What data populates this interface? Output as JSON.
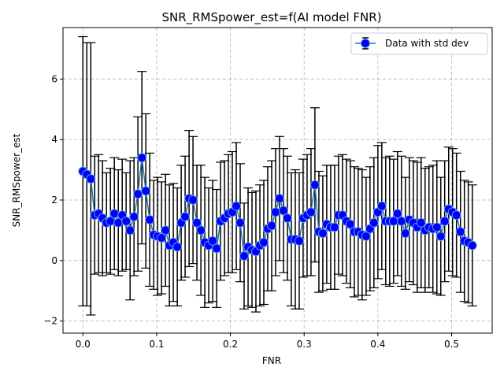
{
  "chart_data": {
    "type": "line",
    "title": "SNR_RMSpower_est=f(AI model FNR)",
    "xlabel": "FNR",
    "ylabel": "SNR_RMSpower_est",
    "xlim": [
      -0.027,
      0.555
    ],
    "ylim": [
      -2.4,
      7.7
    ],
    "xticks": [
      0.0,
      0.1,
      0.2,
      0.3,
      0.4,
      0.5
    ],
    "xtick_labels": [
      "0.0",
      "0.1",
      "0.2",
      "0.3",
      "0.4",
      "0.5"
    ],
    "yticks": [
      -2,
      0,
      2,
      4,
      6
    ],
    "ytick_labels": [
      "−2",
      "0",
      "2",
      "4",
      "6"
    ],
    "grid": true,
    "legend_position": "top-right",
    "colors": {
      "line": "#1f77b4",
      "marker_fill": "#0000ff",
      "errorbar": "#000000",
      "grid": "#b0b0b0"
    },
    "series": [
      {
        "name": "Data with std dev",
        "x": [
          0.0,
          0.0053,
          0.0107,
          0.016,
          0.0213,
          0.0266,
          0.032,
          0.0373,
          0.0426,
          0.048,
          0.0533,
          0.0586,
          0.064,
          0.0693,
          0.0746,
          0.08,
          0.0853,
          0.0906,
          0.096,
          0.1013,
          0.1066,
          0.112,
          0.1173,
          0.1226,
          0.128,
          0.1333,
          0.1386,
          0.144,
          0.1493,
          0.1546,
          0.16,
          0.1653,
          0.1706,
          0.176,
          0.1813,
          0.1866,
          0.192,
          0.1973,
          0.2026,
          0.208,
          0.2133,
          0.2186,
          0.224,
          0.2293,
          0.2346,
          0.24,
          0.2453,
          0.2506,
          0.256,
          0.2613,
          0.2666,
          0.272,
          0.2773,
          0.2826,
          0.288,
          0.2933,
          0.2986,
          0.304,
          0.3093,
          0.3146,
          0.32,
          0.3253,
          0.3306,
          0.336,
          0.3413,
          0.3466,
          0.352,
          0.3573,
          0.3626,
          0.368,
          0.3733,
          0.3786,
          0.384,
          0.3893,
          0.3946,
          0.4,
          0.4053,
          0.4106,
          0.416,
          0.4213,
          0.4266,
          0.432,
          0.4373,
          0.4426,
          0.448,
          0.4533,
          0.4586,
          0.464,
          0.4693,
          0.4746,
          0.48,
          0.4853,
          0.4906,
          0.496,
          0.5013,
          0.5066,
          0.512,
          0.5173,
          0.5226,
          0.528
        ],
        "y": [
          2.95,
          2.85,
          2.7,
          1.5,
          1.55,
          1.4,
          1.25,
          1.3,
          1.55,
          1.25,
          1.5,
          1.3,
          1.0,
          1.45,
          2.2,
          3.4,
          2.3,
          1.35,
          0.85,
          0.8,
          0.75,
          1.0,
          0.5,
          0.6,
          0.45,
          1.25,
          1.45,
          2.05,
          2.0,
          1.25,
          1.0,
          0.6,
          0.5,
          0.65,
          0.4,
          1.3,
          1.4,
          1.55,
          1.6,
          1.8,
          1.25,
          0.15,
          0.45,
          0.35,
          0.3,
          0.5,
          0.6,
          1.05,
          1.15,
          1.6,
          2.05,
          1.65,
          1.4,
          0.7,
          0.7,
          0.65,
          1.4,
          1.5,
          1.6,
          2.5,
          0.95,
          0.9,
          1.2,
          1.1,
          1.1,
          1.5,
          1.5,
          1.3,
          1.2,
          0.95,
          0.95,
          0.85,
          0.8,
          1.05,
          1.25,
          1.6,
          1.8,
          1.3,
          1.3,
          1.3,
          1.55,
          1.3,
          0.9,
          1.35,
          1.25,
          1.1,
          1.25,
          1.0,
          1.1,
          1.05,
          1.1,
          0.8,
          1.3,
          1.7,
          1.6,
          1.5,
          0.95,
          0.65,
          0.6,
          0.5
        ],
        "yerr": [
          4.45,
          4.35,
          4.5,
          1.95,
          1.95,
          1.9,
          1.65,
          1.75,
          1.85,
          1.75,
          1.85,
          1.6,
          2.3,
          1.95,
          2.55,
          2.85,
          2.55,
          2.2,
          1.8,
          1.95,
          1.85,
          1.85,
          2.0,
          1.95,
          1.95,
          1.9,
          2.0,
          2.25,
          2.1,
          1.9,
          2.15,
          2.15,
          1.9,
          2.0,
          1.95,
          1.95,
          1.9,
          1.95,
          2.0,
          2.1,
          1.95,
          1.75,
          1.95,
          1.9,
          2.0,
          2.0,
          2.05,
          2.05,
          2.15,
          2.1,
          2.05,
          2.05,
          2.05,
          2.2,
          2.3,
          2.25,
          1.95,
          2.0,
          2.1,
          2.55,
          2.0,
          1.9,
          1.95,
          2.05,
          2.05,
          1.95,
          2.0,
          2.05,
          2.1,
          2.15,
          2.1,
          2.15,
          1.95,
          2.05,
          2.15,
          2.2,
          2.1,
          2.1,
          2.15,
          2.05,
          2.05,
          2.15,
          1.85,
          2.05,
          2.05,
          2.15,
          2.15,
          2.05,
          2.0,
          2.1,
          2.2,
          1.95,
          2.0,
          2.05,
          2.1,
          2.05,
          2.0,
          2.0,
          2.0,
          2.0
        ]
      }
    ]
  }
}
